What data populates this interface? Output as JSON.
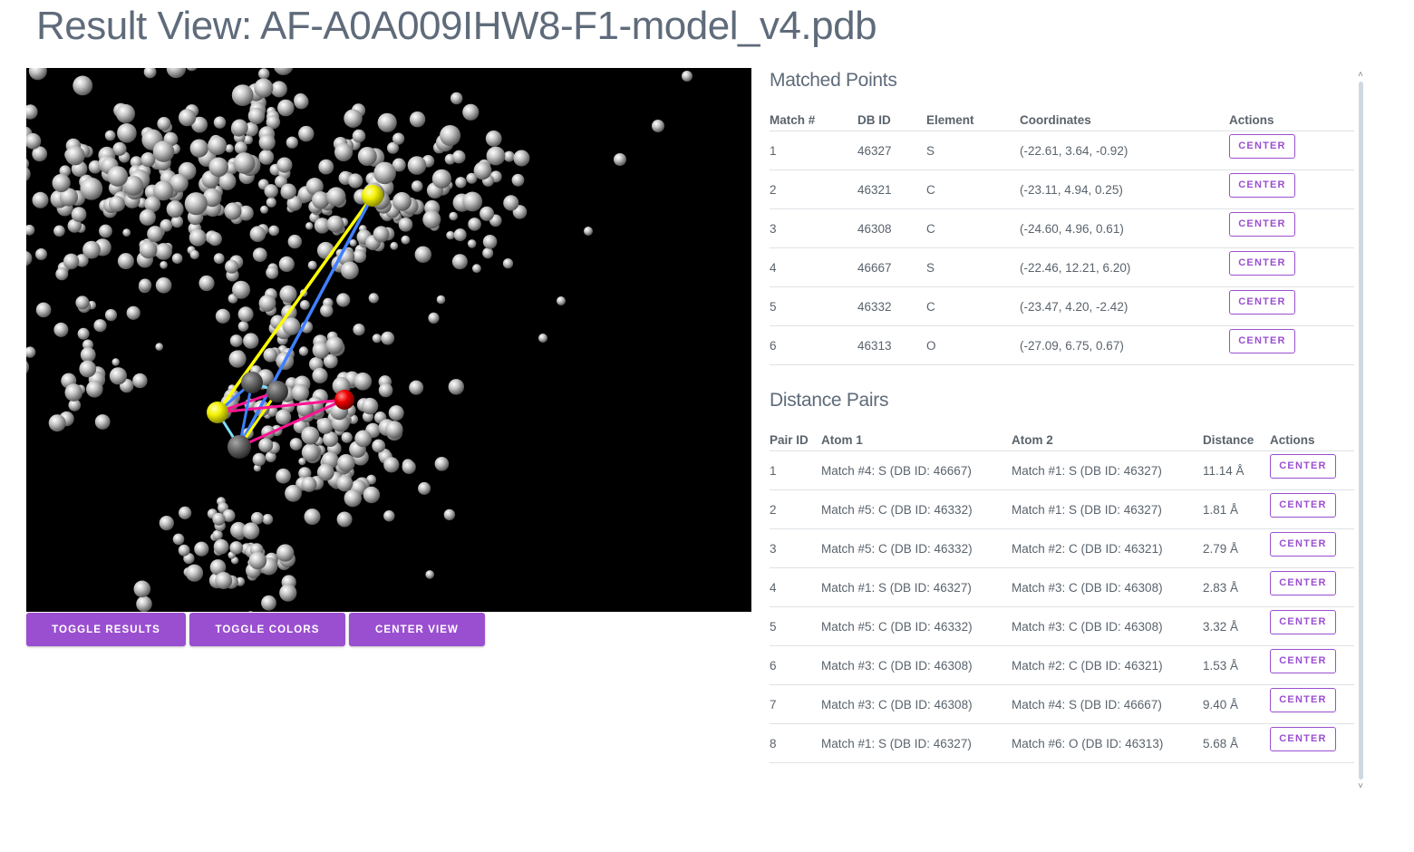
{
  "page": {
    "title": "Result View: AF-A0A009IHW8-F1-model_v4.pdb"
  },
  "viewer": {
    "background": "#000000",
    "buttons": {
      "toggle_results": "Toggle Results",
      "toggle_colors": "Toggle Colors",
      "center_view": "Center View"
    },
    "colors": {
      "sulfur": "#ffff00",
      "oxygen": "#ff0000",
      "carbon": "#666666",
      "atom": "#d0d0d0",
      "line_yellow": "#ffff00",
      "line_blue": "#3f7fff",
      "line_magenta": "#ff1493",
      "line_cyan": "#7fdfff"
    }
  },
  "matched_points": {
    "title": "Matched Points",
    "headers": {
      "match": "Match #",
      "db_id": "DB ID",
      "element": "Element",
      "coordinates": "Coordinates",
      "actions": "Actions"
    },
    "action_label": "Center",
    "rows": [
      {
        "match": "1",
        "db_id": "46327",
        "element": "S",
        "coordinates": "(-22.61, 3.64, -0.92)"
      },
      {
        "match": "2",
        "db_id": "46321",
        "element": "C",
        "coordinates": "(-23.11, 4.94, 0.25)"
      },
      {
        "match": "3",
        "db_id": "46308",
        "element": "C",
        "coordinates": "(-24.60, 4.96, 0.61)"
      },
      {
        "match": "4",
        "db_id": "46667",
        "element": "S",
        "coordinates": "(-22.46, 12.21, 6.20)"
      },
      {
        "match": "5",
        "db_id": "46332",
        "element": "C",
        "coordinates": "(-23.47, 4.20, -2.42)"
      },
      {
        "match": "6",
        "db_id": "46313",
        "element": "O",
        "coordinates": "(-27.09, 6.75, 0.67)"
      }
    ]
  },
  "distance_pairs": {
    "title": "Distance Pairs",
    "headers": {
      "pair_id": "Pair ID",
      "atom1": "Atom 1",
      "atom2": "Atom 2",
      "distance": "Distance",
      "actions": "Actions"
    },
    "action_label": "Center",
    "rows": [
      {
        "pair_id": "1",
        "atom1": "Match #4: S (DB ID: 46667)",
        "atom2": "Match #1: S (DB ID: 46327)",
        "distance": "11.14 Å"
      },
      {
        "pair_id": "2",
        "atom1": "Match #5: C (DB ID: 46332)",
        "atom2": "Match #1: S (DB ID: 46327)",
        "distance": "1.81 Å"
      },
      {
        "pair_id": "3",
        "atom1": "Match #5: C (DB ID: 46332)",
        "atom2": "Match #2: C (DB ID: 46321)",
        "distance": "2.79 Å"
      },
      {
        "pair_id": "4",
        "atom1": "Match #1: S (DB ID: 46327)",
        "atom2": "Match #3: C (DB ID: 46308)",
        "distance": "2.83 Å"
      },
      {
        "pair_id": "5",
        "atom1": "Match #5: C (DB ID: 46332)",
        "atom2": "Match #3: C (DB ID: 46308)",
        "distance": "3.32 Å"
      },
      {
        "pair_id": "6",
        "atom1": "Match #3: C (DB ID: 46308)",
        "atom2": "Match #2: C (DB ID: 46321)",
        "distance": "1.53 Å"
      },
      {
        "pair_id": "7",
        "atom1": "Match #3: C (DB ID: 46308)",
        "atom2": "Match #4: S (DB ID: 46667)",
        "distance": "9.40 Å"
      },
      {
        "pair_id": "8",
        "atom1": "Match #1: S (DB ID: 46327)",
        "atom2": "Match #6: O (DB ID: 46313)",
        "distance": "5.68 Å"
      }
    ]
  }
}
